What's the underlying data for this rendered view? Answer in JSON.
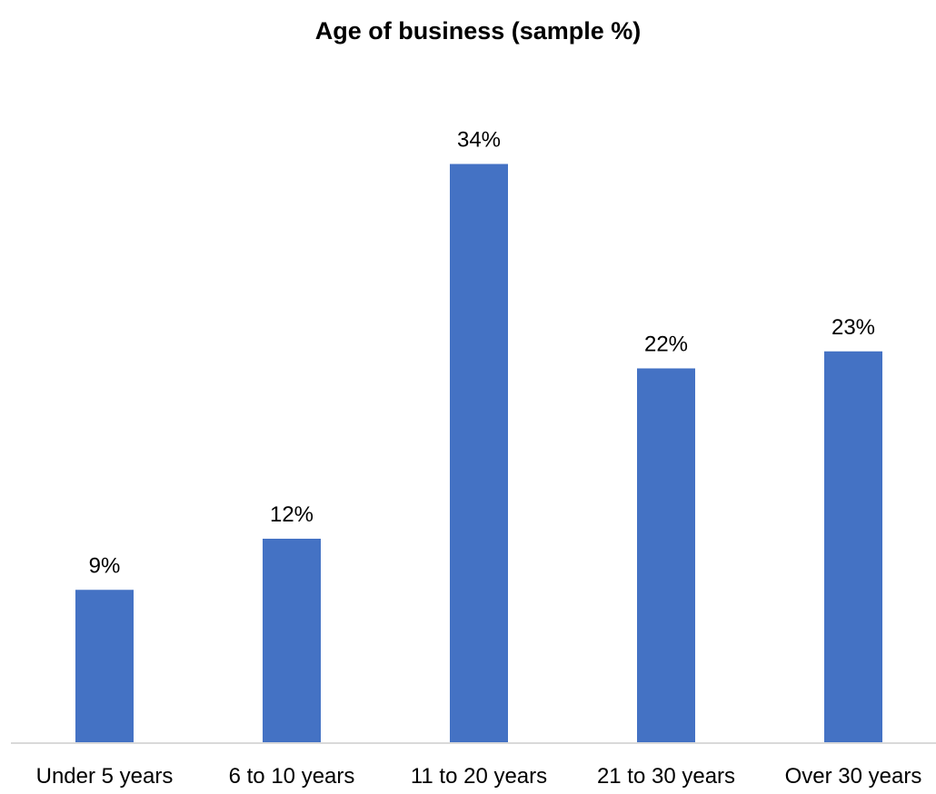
{
  "chart_data": {
    "type": "bar",
    "title": "Age of business (sample %)",
    "xlabel": "",
    "ylabel": "",
    "categories": [
      "Under 5 years",
      "6 to 10 years",
      "11 to 20 years",
      "21 to 30 years",
      "Over 30 years"
    ],
    "values": [
      9,
      12,
      34,
      22,
      23
    ],
    "data_labels": [
      "9%",
      "12%",
      "34%",
      "22%",
      "23%"
    ],
    "unit": "%",
    "ylim": [
      0,
      40
    ],
    "grid": false,
    "legend": "none",
    "bar_color": "#4472C4",
    "axis_color": "#D9D9D9"
  }
}
